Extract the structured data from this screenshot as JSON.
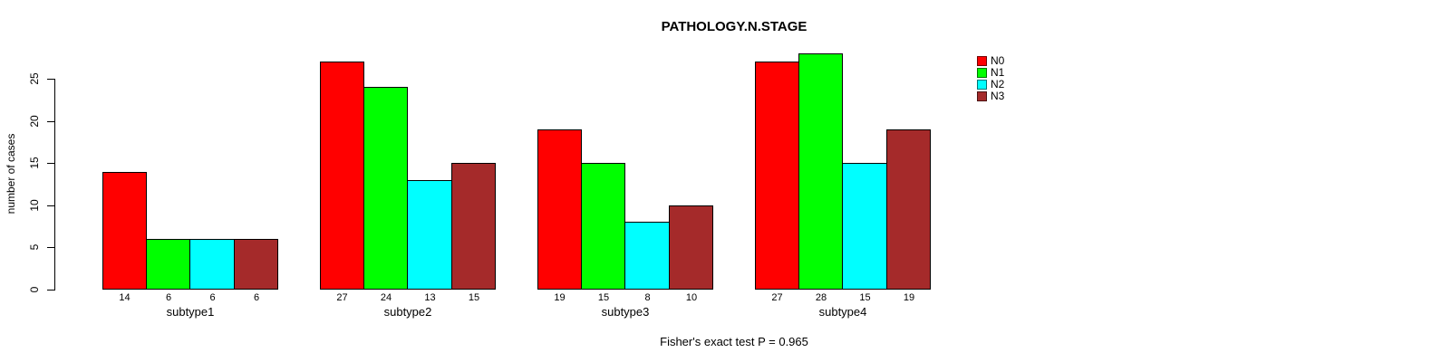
{
  "title": "PATHOLOGY.N.STAGE",
  "ylabel": "number of cases",
  "footer": "Fisher's exact test P = 0.965",
  "legend": {
    "position": "top-right",
    "entries": [
      {
        "label": "N0",
        "color": "#FF0000"
      },
      {
        "label": "N1",
        "color": "#00FF00"
      },
      {
        "label": "N2",
        "color": "#00FFFF"
      },
      {
        "label": "N3",
        "color": "#A52A2A"
      }
    ]
  },
  "chart_data": {
    "type": "bar",
    "grouped": true,
    "title": "PATHOLOGY.N.STAGE",
    "xlabel": "",
    "ylabel": "number of cases",
    "annotation": "Fisher's exact test P = 0.965",
    "legend_position": "top-right",
    "grid": false,
    "bar_value_labels": true,
    "categories": [
      "subtype1",
      "subtype2",
      "subtype3",
      "subtype4"
    ],
    "series": [
      {
        "name": "N0",
        "color": "#FF0000",
        "values": [
          14,
          27,
          19,
          27
        ]
      },
      {
        "name": "N1",
        "color": "#00FF00",
        "values": [
          6,
          24,
          15,
          28
        ]
      },
      {
        "name": "N2",
        "color": "#00FFFF",
        "values": [
          6,
          13,
          8,
          15
        ]
      },
      {
        "name": "N3",
        "color": "#A52A2A",
        "values": [
          6,
          15,
          10,
          19
        ]
      }
    ],
    "yticks": [
      0,
      5,
      10,
      15,
      20,
      25
    ],
    "ylim": [
      0,
      25
    ]
  }
}
